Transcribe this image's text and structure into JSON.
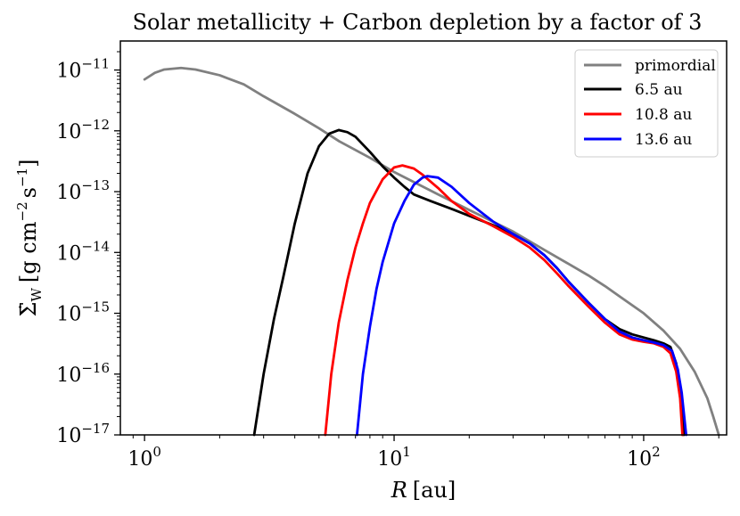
{
  "chart_data": {
    "type": "line",
    "title": "Solar metallicity + Carbon depletion by a factor of 3",
    "xlabel_symbol": "R",
    "xlabel_unit": "[au]",
    "ylabel_symbol": "Σ̇",
    "ylabel_sub": "W",
    "ylabel_unit_prefix": "[g cm",
    "ylabel_unit_exp1": "−2",
    "ylabel_unit_mid": "s",
    "ylabel_unit_exp2": "−1",
    "ylabel_unit_suffix": "]",
    "xscale": "log",
    "yscale": "log",
    "xlim": [
      0.8,
      215
    ],
    "ylim": [
      1e-17,
      3e-11
    ],
    "x_ticks": [
      {
        "value": 1,
        "base": "10",
        "exp": "0"
      },
      {
        "value": 10,
        "base": "10",
        "exp": "1"
      },
      {
        "value": 100,
        "base": "10",
        "exp": "2"
      }
    ],
    "y_ticks": [
      {
        "value": 1e-11,
        "base": "10",
        "exp": "−11"
      },
      {
        "value": 1e-12,
        "base": "10",
        "exp": "−12"
      },
      {
        "value": 1e-13,
        "base": "10",
        "exp": "−13"
      },
      {
        "value": 1e-14,
        "base": "10",
        "exp": "−14"
      },
      {
        "value": 1e-15,
        "base": "10",
        "exp": "−15"
      },
      {
        "value": 1e-16,
        "base": "10",
        "exp": "−16"
      },
      {
        "value": 1e-17,
        "base": "10",
        "exp": "−17"
      }
    ],
    "legend_position": "top-right",
    "series": [
      {
        "name": "primordial",
        "color": "#808080",
        "points": [
          [
            1.0,
            7e-12
          ],
          [
            1.1,
            9e-12
          ],
          [
            1.2,
            1.02e-11
          ],
          [
            1.4,
            1.08e-11
          ],
          [
            1.6,
            1.02e-11
          ],
          [
            2.0,
            8.2e-12
          ],
          [
            2.5,
            5.8e-12
          ],
          [
            3.0,
            3.7e-12
          ],
          [
            4.0,
            1.9e-12
          ],
          [
            5.0,
            1.1e-12
          ],
          [
            6.0,
            6.8e-13
          ],
          [
            8.0,
            3.6e-13
          ],
          [
            10,
            2.1e-13
          ],
          [
            15,
            9e-14
          ],
          [
            20,
            5e-14
          ],
          [
            30,
            2.2e-14
          ],
          [
            40,
            1.1e-14
          ],
          [
            50,
            6.5e-15
          ],
          [
            60,
            4.2e-15
          ],
          [
            70,
            2.8e-15
          ],
          [
            80,
            1.9e-15
          ],
          [
            100,
            1e-15
          ],
          [
            120,
            5.2e-16
          ],
          [
            140,
            2.6e-16
          ],
          [
            160,
            1.1e-16
          ],
          [
            180,
            4e-17
          ],
          [
            190,
            2e-17
          ],
          [
            200,
            1e-17
          ]
        ]
      },
      {
        "name": "6.5 au",
        "color": "#000000",
        "points": [
          [
            2.75,
            1e-17
          ],
          [
            3.0,
            1e-16
          ],
          [
            3.3,
            8e-16
          ],
          [
            3.6,
            4e-15
          ],
          [
            4.0,
            3e-14
          ],
          [
            4.5,
            2e-13
          ],
          [
            5.0,
            5.6e-13
          ],
          [
            5.5,
            9e-13
          ],
          [
            6.0,
            1.03e-12
          ],
          [
            6.5,
            9.5e-13
          ],
          [
            7.0,
            8e-13
          ],
          [
            8.0,
            4.5e-13
          ],
          [
            9.0,
            2.6e-13
          ],
          [
            10,
            1.7e-13
          ],
          [
            11,
            1.2e-13
          ],
          [
            12,
            9e-14
          ],
          [
            14,
            7e-14
          ],
          [
            17,
            5.2e-14
          ],
          [
            20,
            4e-14
          ],
          [
            25,
            2.8e-14
          ],
          [
            30,
            2e-14
          ],
          [
            35,
            1.4e-14
          ],
          [
            40,
            9e-15
          ],
          [
            45,
            5.5e-15
          ],
          [
            50,
            3.3e-15
          ],
          [
            60,
            1.5e-15
          ],
          [
            70,
            8e-16
          ],
          [
            80,
            5.5e-16
          ],
          [
            90,
            4.5e-16
          ],
          [
            100,
            4e-16
          ],
          [
            110,
            3.6e-16
          ],
          [
            120,
            3.2e-16
          ],
          [
            128,
            2.8e-16
          ],
          [
            135,
            1.5e-16
          ],
          [
            140,
            6e-17
          ],
          [
            145,
            1e-17
          ]
        ]
      },
      {
        "name": "10.8 au",
        "color": "#ff0000",
        "points": [
          [
            5.3,
            1e-17
          ],
          [
            5.6,
            1e-16
          ],
          [
            6.0,
            7e-16
          ],
          [
            6.5,
            3.5e-15
          ],
          [
            7.0,
            1.2e-14
          ],
          [
            7.5,
            3e-14
          ],
          [
            8.0,
            6.5e-14
          ],
          [
            9.0,
            1.6e-13
          ],
          [
            10,
            2.5e-13
          ],
          [
            10.8,
            2.7e-13
          ],
          [
            12,
            2.4e-13
          ],
          [
            13,
            1.9e-13
          ],
          [
            15,
            1.15e-13
          ],
          [
            17,
            7e-14
          ],
          [
            20,
            4.3e-14
          ],
          [
            25,
            2.7e-14
          ],
          [
            30,
            1.8e-14
          ],
          [
            35,
            1.2e-14
          ],
          [
            40,
            7.5e-15
          ],
          [
            45,
            4.5e-15
          ],
          [
            50,
            2.8e-15
          ],
          [
            60,
            1.3e-15
          ],
          [
            70,
            7e-16
          ],
          [
            80,
            4.5e-16
          ],
          [
            90,
            3.7e-16
          ],
          [
            100,
            3.4e-16
          ],
          [
            110,
            3.2e-16
          ],
          [
            120,
            2.8e-16
          ],
          [
            128,
            2.2e-16
          ],
          [
            135,
            1.1e-16
          ],
          [
            140,
            4e-17
          ],
          [
            143,
            1e-17
          ]
        ]
      },
      {
        "name": "13.6 au",
        "color": "#0000ff",
        "points": [
          [
            7.1,
            1e-17
          ],
          [
            7.5,
            1e-16
          ],
          [
            8.0,
            6e-16
          ],
          [
            8.5,
            2.5e-15
          ],
          [
            9.0,
            7e-15
          ],
          [
            10,
            3e-14
          ],
          [
            11,
            7e-14
          ],
          [
            12,
            1.3e-13
          ],
          [
            13,
            1.7e-13
          ],
          [
            13.6,
            1.8e-13
          ],
          [
            15,
            1.7e-13
          ],
          [
            17,
            1.2e-13
          ],
          [
            20,
            6.5e-14
          ],
          [
            25,
            3.2e-14
          ],
          [
            30,
            2e-14
          ],
          [
            35,
            1.4e-14
          ],
          [
            40,
            9e-15
          ],
          [
            45,
            5.5e-15
          ],
          [
            50,
            3.3e-15
          ],
          [
            60,
            1.5e-15
          ],
          [
            70,
            8e-16
          ],
          [
            80,
            5e-16
          ],
          [
            90,
            4e-16
          ],
          [
            100,
            3.6e-16
          ],
          [
            110,
            3.3e-16
          ],
          [
            120,
            3e-16
          ],
          [
            130,
            2.4e-16
          ],
          [
            137,
            1.2e-16
          ],
          [
            142,
            5e-17
          ],
          [
            148,
            1e-17
          ]
        ]
      }
    ]
  }
}
